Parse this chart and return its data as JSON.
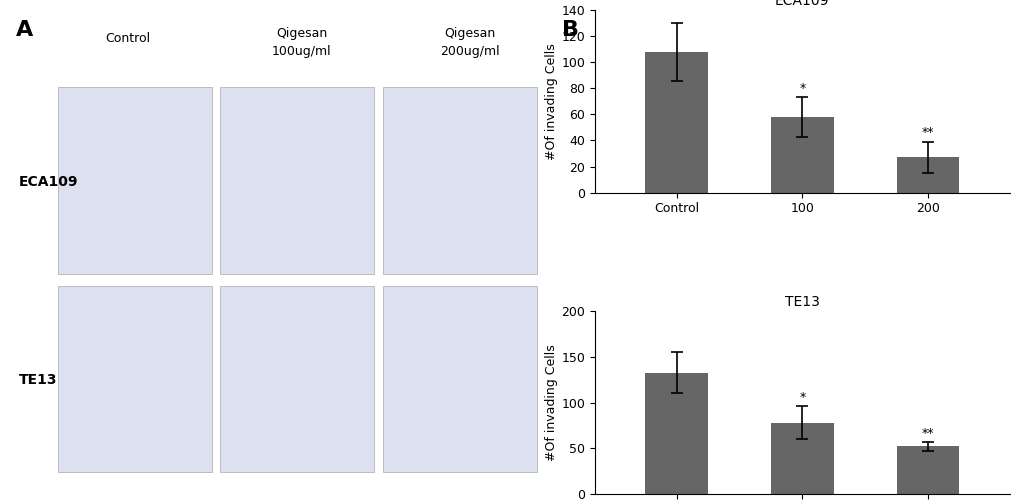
{
  "eca109": {
    "title": "ECA109",
    "values": [
      108,
      58,
      27
    ],
    "errors": [
      22,
      15,
      12
    ],
    "ylim": [
      0,
      140
    ],
    "yticks": [
      0,
      20,
      40,
      60,
      80,
      100,
      120,
      140
    ],
    "ylabel": "#Of invading Cells",
    "significance": [
      "",
      "*",
      "**"
    ]
  },
  "te13": {
    "title": "TE13",
    "values": [
      133,
      78,
      52
    ],
    "errors": [
      22,
      18,
      5
    ],
    "ylim": [
      0,
      200
    ],
    "yticks": [
      0,
      50,
      100,
      150,
      200
    ],
    "ylabel": "#Of invading Cells",
    "significance": [
      "",
      "*",
      "**"
    ]
  },
  "bar_color": "#666666",
  "bar_width": 0.5,
  "panel_a_label": "A",
  "panel_b_label": "B",
  "col_labels": [
    "Control",
    "Qigesan\n100ug/ml",
    "Qigesan\n200ug/ml"
  ],
  "row_labels": [
    "ECA109",
    "TE13"
  ],
  "background_color": "#ffffff",
  "xlabel": "Qigesan",
  "xticklabels": [
    "Control",
    "100",
    "200"
  ]
}
